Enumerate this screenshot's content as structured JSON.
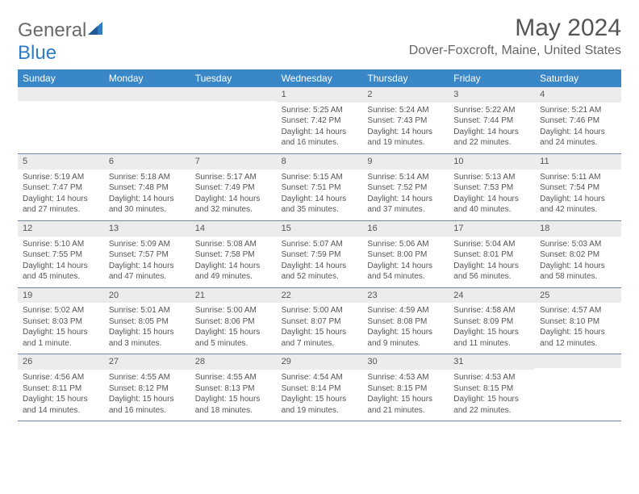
{
  "logo": {
    "word1": "General",
    "word2": "Blue"
  },
  "title": "May 2024",
  "location": "Dover-Foxcroft, Maine, United States",
  "colors": {
    "header_bg": "#3a87c8",
    "header_text": "#ffffff",
    "daynum_bg": "#ececec",
    "week_border": "#6a89a8",
    "body_text": "#555555",
    "page_bg": "#ffffff",
    "logo_gray": "#6a6a6a",
    "logo_blue": "#2f7bc4"
  },
  "fonts": {
    "title_size_pt": 22,
    "location_size_pt": 12,
    "header_size_pt": 9,
    "cell_size_pt": 7.5
  },
  "day_names": [
    "Sunday",
    "Monday",
    "Tuesday",
    "Wednesday",
    "Thursday",
    "Friday",
    "Saturday"
  ],
  "weeks": [
    [
      {
        "n": "",
        "empty": true
      },
      {
        "n": "",
        "empty": true
      },
      {
        "n": "",
        "empty": true
      },
      {
        "n": "1",
        "sr": "Sunrise: 5:25 AM",
        "ss": "Sunset: 7:42 PM",
        "d1": "Daylight: 14 hours",
        "d2": "and 16 minutes."
      },
      {
        "n": "2",
        "sr": "Sunrise: 5:24 AM",
        "ss": "Sunset: 7:43 PM",
        "d1": "Daylight: 14 hours",
        "d2": "and 19 minutes."
      },
      {
        "n": "3",
        "sr": "Sunrise: 5:22 AM",
        "ss": "Sunset: 7:44 PM",
        "d1": "Daylight: 14 hours",
        "d2": "and 22 minutes."
      },
      {
        "n": "4",
        "sr": "Sunrise: 5:21 AM",
        "ss": "Sunset: 7:46 PM",
        "d1": "Daylight: 14 hours",
        "d2": "and 24 minutes."
      }
    ],
    [
      {
        "n": "5",
        "sr": "Sunrise: 5:19 AM",
        "ss": "Sunset: 7:47 PM",
        "d1": "Daylight: 14 hours",
        "d2": "and 27 minutes."
      },
      {
        "n": "6",
        "sr": "Sunrise: 5:18 AM",
        "ss": "Sunset: 7:48 PM",
        "d1": "Daylight: 14 hours",
        "d2": "and 30 minutes."
      },
      {
        "n": "7",
        "sr": "Sunrise: 5:17 AM",
        "ss": "Sunset: 7:49 PM",
        "d1": "Daylight: 14 hours",
        "d2": "and 32 minutes."
      },
      {
        "n": "8",
        "sr": "Sunrise: 5:15 AM",
        "ss": "Sunset: 7:51 PM",
        "d1": "Daylight: 14 hours",
        "d2": "and 35 minutes."
      },
      {
        "n": "9",
        "sr": "Sunrise: 5:14 AM",
        "ss": "Sunset: 7:52 PM",
        "d1": "Daylight: 14 hours",
        "d2": "and 37 minutes."
      },
      {
        "n": "10",
        "sr": "Sunrise: 5:13 AM",
        "ss": "Sunset: 7:53 PM",
        "d1": "Daylight: 14 hours",
        "d2": "and 40 minutes."
      },
      {
        "n": "11",
        "sr": "Sunrise: 5:11 AM",
        "ss": "Sunset: 7:54 PM",
        "d1": "Daylight: 14 hours",
        "d2": "and 42 minutes."
      }
    ],
    [
      {
        "n": "12",
        "sr": "Sunrise: 5:10 AM",
        "ss": "Sunset: 7:55 PM",
        "d1": "Daylight: 14 hours",
        "d2": "and 45 minutes."
      },
      {
        "n": "13",
        "sr": "Sunrise: 5:09 AM",
        "ss": "Sunset: 7:57 PM",
        "d1": "Daylight: 14 hours",
        "d2": "and 47 minutes."
      },
      {
        "n": "14",
        "sr": "Sunrise: 5:08 AM",
        "ss": "Sunset: 7:58 PM",
        "d1": "Daylight: 14 hours",
        "d2": "and 49 minutes."
      },
      {
        "n": "15",
        "sr": "Sunrise: 5:07 AM",
        "ss": "Sunset: 7:59 PM",
        "d1": "Daylight: 14 hours",
        "d2": "and 52 minutes."
      },
      {
        "n": "16",
        "sr": "Sunrise: 5:06 AM",
        "ss": "Sunset: 8:00 PM",
        "d1": "Daylight: 14 hours",
        "d2": "and 54 minutes."
      },
      {
        "n": "17",
        "sr": "Sunrise: 5:04 AM",
        "ss": "Sunset: 8:01 PM",
        "d1": "Daylight: 14 hours",
        "d2": "and 56 minutes."
      },
      {
        "n": "18",
        "sr": "Sunrise: 5:03 AM",
        "ss": "Sunset: 8:02 PM",
        "d1": "Daylight: 14 hours",
        "d2": "and 58 minutes."
      }
    ],
    [
      {
        "n": "19",
        "sr": "Sunrise: 5:02 AM",
        "ss": "Sunset: 8:03 PM",
        "d1": "Daylight: 15 hours",
        "d2": "and 1 minute."
      },
      {
        "n": "20",
        "sr": "Sunrise: 5:01 AM",
        "ss": "Sunset: 8:05 PM",
        "d1": "Daylight: 15 hours",
        "d2": "and 3 minutes."
      },
      {
        "n": "21",
        "sr": "Sunrise: 5:00 AM",
        "ss": "Sunset: 8:06 PM",
        "d1": "Daylight: 15 hours",
        "d2": "and 5 minutes."
      },
      {
        "n": "22",
        "sr": "Sunrise: 5:00 AM",
        "ss": "Sunset: 8:07 PM",
        "d1": "Daylight: 15 hours",
        "d2": "and 7 minutes."
      },
      {
        "n": "23",
        "sr": "Sunrise: 4:59 AM",
        "ss": "Sunset: 8:08 PM",
        "d1": "Daylight: 15 hours",
        "d2": "and 9 minutes."
      },
      {
        "n": "24",
        "sr": "Sunrise: 4:58 AM",
        "ss": "Sunset: 8:09 PM",
        "d1": "Daylight: 15 hours",
        "d2": "and 11 minutes."
      },
      {
        "n": "25",
        "sr": "Sunrise: 4:57 AM",
        "ss": "Sunset: 8:10 PM",
        "d1": "Daylight: 15 hours",
        "d2": "and 12 minutes."
      }
    ],
    [
      {
        "n": "26",
        "sr": "Sunrise: 4:56 AM",
        "ss": "Sunset: 8:11 PM",
        "d1": "Daylight: 15 hours",
        "d2": "and 14 minutes."
      },
      {
        "n": "27",
        "sr": "Sunrise: 4:55 AM",
        "ss": "Sunset: 8:12 PM",
        "d1": "Daylight: 15 hours",
        "d2": "and 16 minutes."
      },
      {
        "n": "28",
        "sr": "Sunrise: 4:55 AM",
        "ss": "Sunset: 8:13 PM",
        "d1": "Daylight: 15 hours",
        "d2": "and 18 minutes."
      },
      {
        "n": "29",
        "sr": "Sunrise: 4:54 AM",
        "ss": "Sunset: 8:14 PM",
        "d1": "Daylight: 15 hours",
        "d2": "and 19 minutes."
      },
      {
        "n": "30",
        "sr": "Sunrise: 4:53 AM",
        "ss": "Sunset: 8:15 PM",
        "d1": "Daylight: 15 hours",
        "d2": "and 21 minutes."
      },
      {
        "n": "31",
        "sr": "Sunrise: 4:53 AM",
        "ss": "Sunset: 8:15 PM",
        "d1": "Daylight: 15 hours",
        "d2": "and 22 minutes."
      },
      {
        "n": "",
        "empty": true
      }
    ]
  ]
}
